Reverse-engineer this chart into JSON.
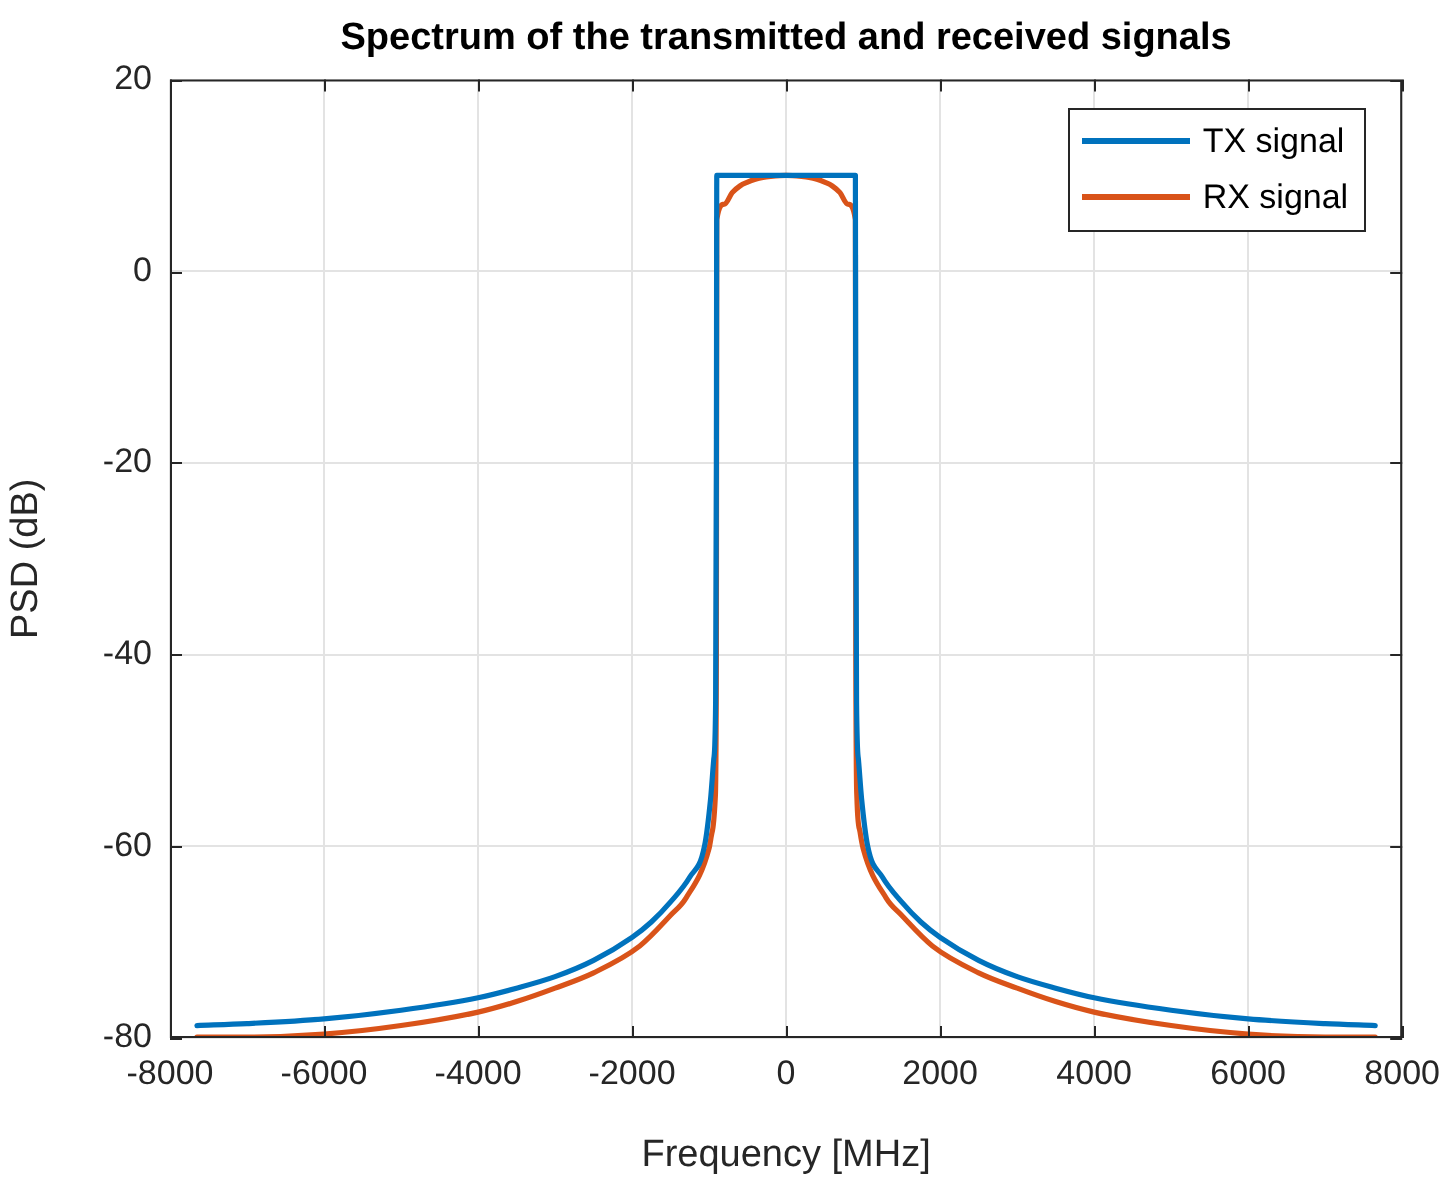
{
  "chart_data": {
    "type": "line",
    "title": "Spectrum of the transmitted and received signals",
    "xlabel": "Frequency [MHz]",
    "ylabel": "PSD (dB)",
    "xlim": [
      -8000,
      8000
    ],
    "xticks": [
      -8000,
      -6000,
      -4000,
      -2000,
      0,
      2000,
      4000,
      6000,
      8000
    ],
    "ylim": [
      -80,
      20
    ],
    "yticks": [
      -80,
      -60,
      -40,
      -20,
      0,
      20
    ],
    "grid": true,
    "legend": "top right",
    "series": [
      {
        "name": "TX signal",
        "color": "#0072bd",
        "x": [
          -7650,
          -7000,
          -6000,
          -5000,
          -4000,
          -3500,
          -3000,
          -2500,
          -2000,
          -1750,
          -1500,
          -1250,
          -1060,
          -980,
          -940,
          -915,
          -905,
          -900,
          -450,
          0,
          450,
          900,
          905,
          915,
          940,
          980,
          1060,
          1250,
          1500,
          1750,
          2000,
          2500,
          3000,
          3500,
          4000,
          5000,
          6000,
          7000,
          7650
        ],
        "values": [
          -78.7,
          -78.5,
          -78,
          -77.1,
          -75.8,
          -74.8,
          -73.6,
          -71.9,
          -69.5,
          -67.9,
          -65.8,
          -63.2,
          -60,
          -55,
          -51,
          -45,
          -20,
          10,
          10,
          10,
          10,
          10,
          -20,
          -45,
          -51,
          -55,
          -60,
          -63.2,
          -65.8,
          -67.9,
          -69.5,
          -71.9,
          -73.6,
          -74.8,
          -75.8,
          -77.1,
          -78,
          -78.5,
          -78.7
        ]
      },
      {
        "name": "RX signal",
        "color": "#d95319",
        "x": [
          -7650,
          -7000,
          -6000,
          -5000,
          -4000,
          -3500,
          -3000,
          -2500,
          -1900,
          -1500,
          -1300,
          -1000,
          -960,
          -920,
          -905,
          -900,
          -800,
          -700,
          -600,
          -500,
          -400,
          -300,
          -200,
          0,
          200,
          300,
          400,
          500,
          600,
          700,
          800,
          900,
          905,
          920,
          960,
          1000,
          1300,
          1500,
          1900,
          2500,
          3000,
          3500,
          4000,
          5000,
          6000,
          7000,
          7650
        ],
        "values": [
          -79.9,
          -79.9,
          -79.6,
          -78.7,
          -77.3,
          -76.2,
          -74.8,
          -73.2,
          -70.4,
          -67.2,
          -65.4,
          -60.2,
          -58.5,
          -55,
          -40,
          5.4,
          7,
          8.2,
          8.9,
          9.3,
          9.6,
          9.8,
          9.9,
          10,
          9.9,
          9.8,
          9.6,
          9.3,
          8.9,
          8.2,
          7,
          5.4,
          -40,
          -55,
          -58.5,
          -60.2,
          -65.4,
          -67.2,
          -70.4,
          -73.2,
          -74.8,
          -76.2,
          -77.3,
          -78.7,
          -79.6,
          -79.9,
          -79.9
        ]
      }
    ]
  }
}
